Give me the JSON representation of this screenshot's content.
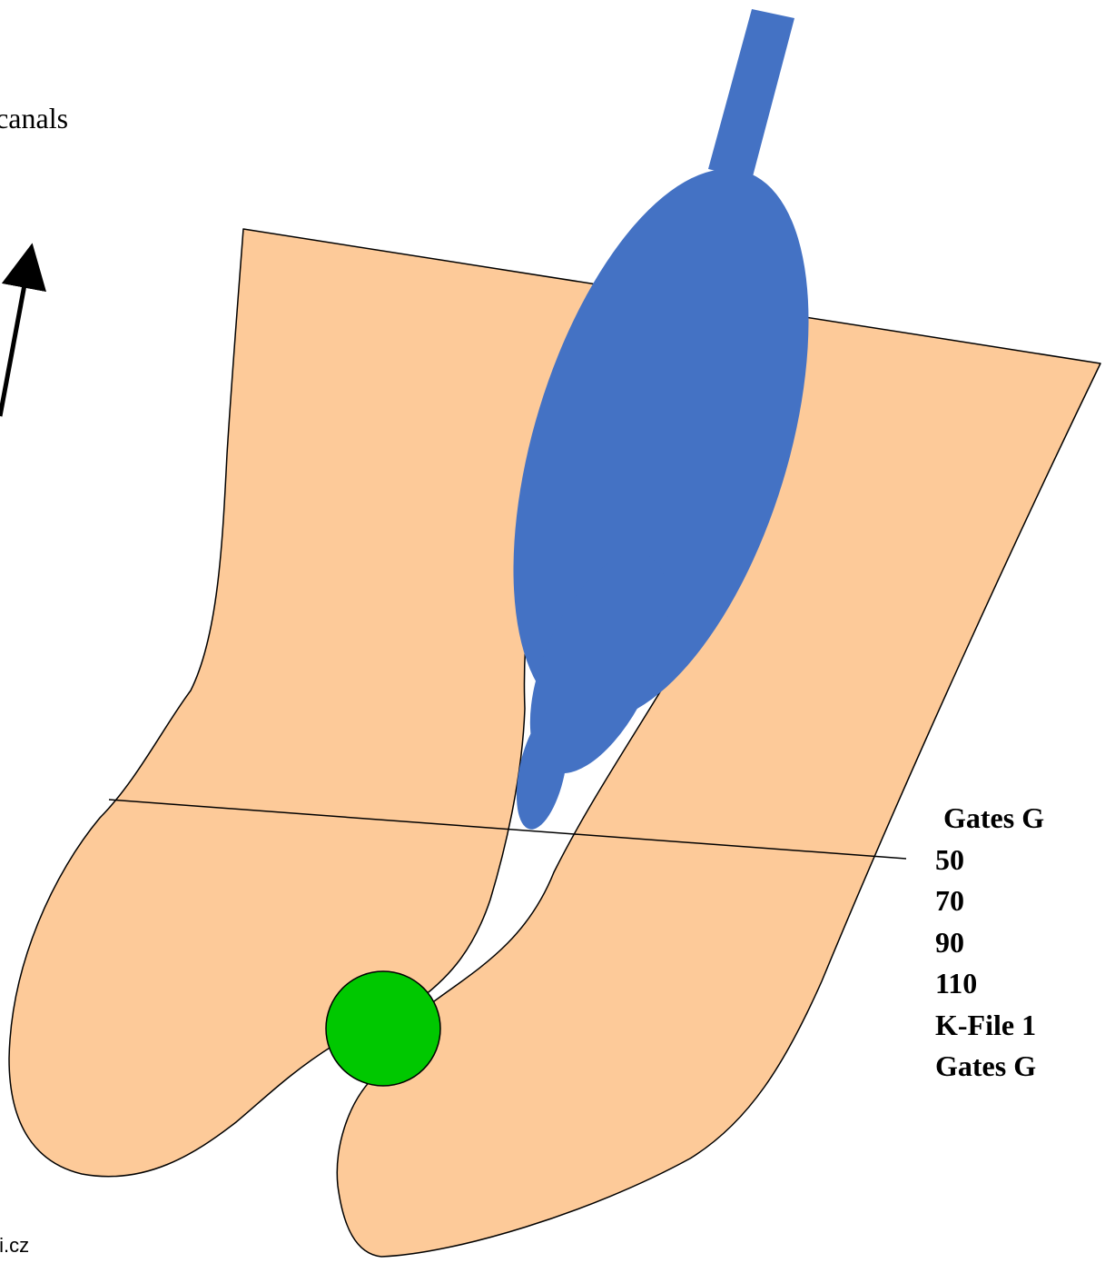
{
  "caption": "ple canals",
  "steps": [
    "Gates G",
    "50",
    "70",
    "90",
    "110",
    "K-File 1",
    "Gates G"
  ],
  "footer": "ali.cz",
  "colors": {
    "root": "#fdca99",
    "instrument": "#4472c4",
    "marker": "#00c800",
    "stroke": "#000000"
  }
}
